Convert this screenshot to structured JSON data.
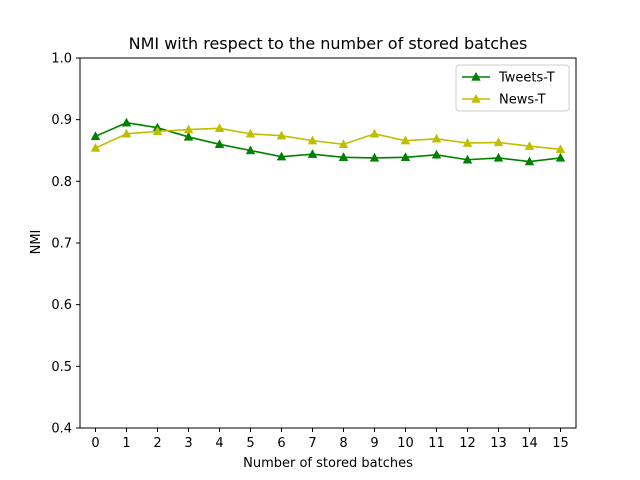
{
  "chart_data": {
    "type": "line",
    "title": "NMI with respect to the number of stored batches",
    "xlabel": "Number of stored batches",
    "ylabel": "NMI",
    "x": [
      0,
      1,
      2,
      3,
      4,
      5,
      6,
      7,
      8,
      9,
      10,
      11,
      12,
      13,
      14,
      15
    ],
    "xlim": [
      -0.5,
      15.5
    ],
    "ylim": [
      0.4,
      1.0
    ],
    "yticks": [
      "0.4",
      "0.5",
      "0.6",
      "0.7",
      "0.8",
      "0.9",
      "1.0"
    ],
    "xticks": [
      "0",
      "1",
      "2",
      "3",
      "4",
      "5",
      "6",
      "7",
      "8",
      "9",
      "10",
      "11",
      "12",
      "13",
      "14",
      "15"
    ],
    "grid": false,
    "legend_position": "top-right",
    "marker": "triangle-up",
    "series": [
      {
        "name": "Tweets-T",
        "color": "#008000",
        "values": [
          0.873,
          0.895,
          0.887,
          0.872,
          0.86,
          0.85,
          0.84,
          0.844,
          0.839,
          0.838,
          0.839,
          0.843,
          0.835,
          0.838,
          0.832,
          0.838
        ]
      },
      {
        "name": "News-T",
        "color": "#bfbf00",
        "values": [
          0.854,
          0.877,
          0.881,
          0.884,
          0.886,
          0.877,
          0.874,
          0.866,
          0.86,
          0.877,
          0.866,
          0.869,
          0.862,
          0.863,
          0.857,
          0.852
        ]
      }
    ]
  }
}
